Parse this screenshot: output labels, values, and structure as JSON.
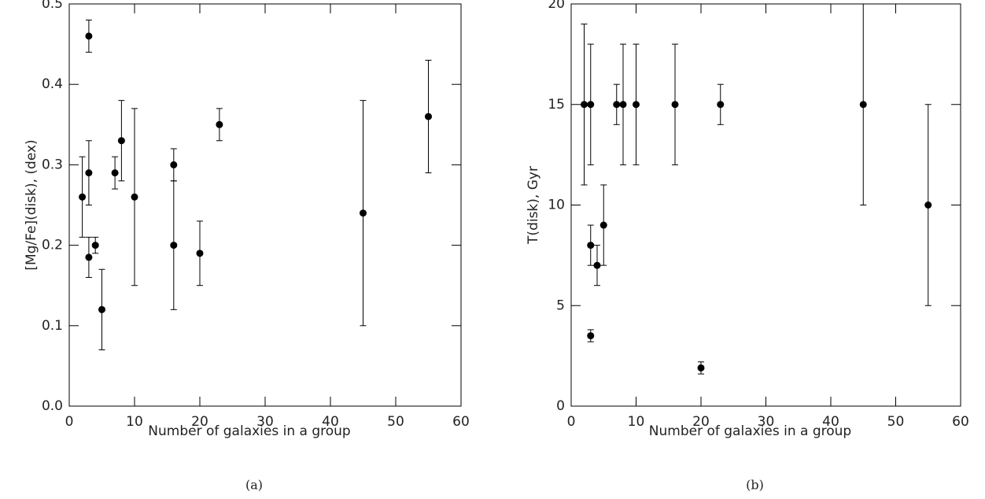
{
  "chart_data": [
    {
      "type": "errorbar",
      "caption": "(a)",
      "xlabel": "Number of galaxies in a group",
      "ylabel": "[Mg/Fe](disk), (dex)",
      "x": [
        2,
        3,
        3,
        3,
        4,
        5,
        7,
        8,
        10,
        16,
        16,
        20,
        23,
        45,
        55
      ],
      "values": [
        0.26,
        0.46,
        0.29,
        0.185,
        0.2,
        0.12,
        0.29,
        0.33,
        0.26,
        0.3,
        0.2,
        0.19,
        0.35,
        0.24,
        0.36
      ],
      "errors": [
        0.05,
        0.02,
        0.04,
        0.025,
        0.01,
        0.05,
        0.02,
        0.05,
        0.11,
        0.02,
        0.08,
        0.04,
        0.02,
        0.14,
        0.07
      ],
      "color": "#000000",
      "xlim": [
        0,
        60
      ],
      "xticks": [
        0,
        10,
        20,
        30,
        40,
        50,
        60
      ],
      "ylim": [
        0,
        0.5
      ],
      "yticks": [
        {
          "value": 0,
          "label": "0.0"
        },
        0.1,
        0.2,
        0.3,
        0.4,
        0.5
      ]
    },
    {
      "type": "errorbar",
      "caption": "(b)",
      "xlabel": "Number of galaxies in a group",
      "ylabel": "T(disk), Gyr",
      "x": [
        2,
        3,
        3,
        3,
        4,
        5,
        7,
        8,
        10,
        16,
        20,
        23,
        45,
        55
      ],
      "values": [
        15,
        15,
        8,
        3.5,
        7,
        9,
        15,
        15,
        15,
        15,
        1.9,
        15,
        15,
        10
      ],
      "errors": [
        4,
        3,
        1,
        0.3,
        1,
        2,
        1,
        3,
        3,
        3,
        0.3,
        1,
        5,
        5
      ],
      "color": "#000000",
      "xlim": [
        0,
        60
      ],
      "xticks": [
        0,
        10,
        20,
        30,
        40,
        50,
        60
      ],
      "ylim": [
        0,
        20
      ],
      "yticks": [
        0,
        5,
        10,
        15,
        20
      ]
    }
  ]
}
